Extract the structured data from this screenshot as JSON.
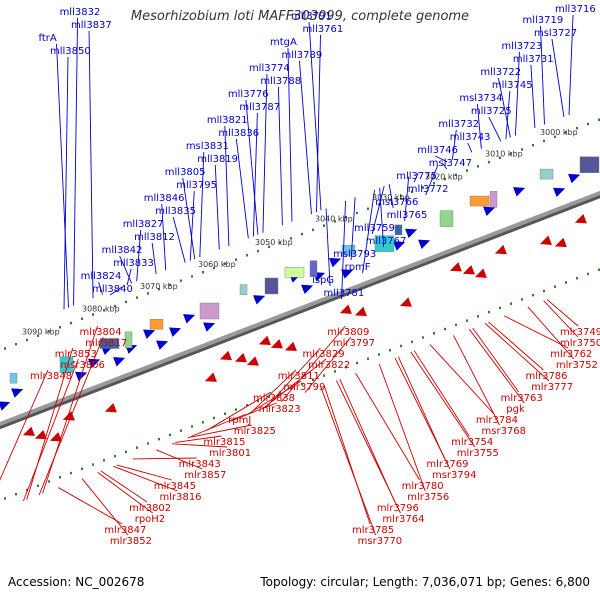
{
  "title": "Mesorhizobium loti MAFF303099, complete genome",
  "footer": {
    "accession": "Accession: NC_002678",
    "summary": "Topology: circular; Length: 7,036,071 bp; Genes: 6,800"
  },
  "colors": {
    "forward": "#0000cc",
    "reverse": "#cc0000",
    "backbone": "#999999",
    "marker": "#2e7d2e"
  },
  "kbp_ticks": [
    "3000 kbp",
    "3010 kbp",
    "3020 kbp",
    "3030 kbp",
    "3040 kbp",
    "3050 kbp",
    "3060 kbp",
    "3070 kbp",
    "3080 kbp",
    "3090 kbp"
  ],
  "top_labels": [
    "mll3716",
    "mll3719",
    "msl3727",
    "mll3723",
    "mll3731",
    "mll3722",
    "mll3745",
    "msl3734",
    "mll3725",
    "mll3732",
    "mll3743",
    "mll3746",
    "msl3747",
    "mll3775",
    "mll3772",
    "msl3766",
    "mll3765",
    "mll3759",
    "mll3767",
    "msl3793",
    "rpmF",
    "ispG",
    "mll3781",
    "mll3791",
    "mll3761",
    "mtgA",
    "mll3789",
    "mll3774",
    "mll3788",
    "mll3776",
    "mll3787",
    "mll3821",
    "mll3836",
    "msl3831",
    "mll3819",
    "mll3805",
    "mll3795",
    "mll3846",
    "mll3835",
    "mll3827",
    "mll3812",
    "mll3842",
    "mll3833",
    "mll3824",
    "mll3840",
    "mll3832",
    "mll3837",
    "ftrA",
    "mll3850"
  ],
  "bottom_labels": [
    "mlr3749",
    "mlr3750",
    "mlr3762",
    "mlr3752",
    "mlr3786",
    "mlr3777",
    "mlr3763",
    "pgk",
    "mlr3784",
    "msr3768",
    "mlr3754",
    "mlr3755",
    "mlr3769",
    "msr3794",
    "mlr3780",
    "mlr3756",
    "mlr3796",
    "mlr3764",
    "mlr3785",
    "msr3770",
    "mlr3809",
    "mlr3797",
    "mlr3829",
    "mlr3822",
    "mlr3811",
    "mlr3799",
    "mlr3838",
    "mlr3823",
    "rpmJ",
    "mlr3825",
    "mlr3815",
    "mlr3801",
    "mlr3843",
    "mlr3857",
    "mlr3845",
    "mlr3816",
    "mlr3802",
    "rpoH2",
    "mlr3847",
    "mlr3852",
    "mlr3804",
    "mlr3817",
    "mlr3853",
    "msr3806",
    "mlr3848"
  ]
}
